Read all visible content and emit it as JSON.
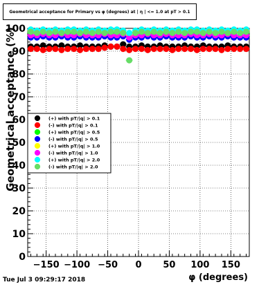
{
  "title": "Geometrical acceptance for Primary vs φ (degrees) at | η | <= 1.0 at pT > 0.1",
  "datestamp": "Tue Jul  3 09:29:17 2018",
  "chart_data": {
    "type": "scatter",
    "xlabel": "φ (degrees)",
    "ylabel": "Geometrical acceptance (%)",
    "xlim": [
      -180,
      180
    ],
    "ylim": [
      0,
      100
    ],
    "xticks": [
      -150,
      -100,
      -50,
      0,
      50,
      100,
      150
    ],
    "xtick_labels": [
      "−150",
      "−100",
      "−50",
      "0",
      "50",
      "100",
      "150"
    ],
    "yticks": [
      0,
      10,
      20,
      30,
      40,
      50,
      60,
      70,
      80,
      90,
      100
    ],
    "ytick_labels": [
      "0",
      "10",
      "20",
      "30",
      "40",
      "50",
      "60",
      "70",
      "80",
      "90",
      "100"
    ],
    "grid": true,
    "legend_position": "left",
    "x": [
      -175,
      -165,
      -155,
      -145,
      -135,
      -125,
      -115,
      -105,
      -95,
      -85,
      -75,
      -65,
      -55,
      -45,
      -35,
      -25,
      -15,
      -5,
      5,
      15,
      25,
      35,
      45,
      55,
      65,
      75,
      85,
      95,
      105,
      115,
      125,
      135,
      145,
      155,
      165,
      175
    ],
    "series": [
      {
        "name": "(+) with pT/|q| > 0.1",
        "color": "#000000",
        "marker": "circle",
        "values": [
          92,
          92,
          92.5,
          92,
          92,
          92.5,
          92,
          92,
          92.5,
          92,
          92,
          92,
          92.5,
          92,
          92,
          93,
          92,
          92,
          92.5,
          92,
          92,
          92.5,
          92,
          92,
          92,
          92.5,
          92,
          92,
          92.5,
          92,
          92,
          92,
          92.5,
          92,
          92,
          92
        ]
      },
      {
        "name": "(-) with pT/|q| > 0.1",
        "color": "#ff0000",
        "marker": "circle",
        "values": [
          91,
          91,
          90.5,
          91,
          91,
          90.5,
          91,
          91,
          90.5,
          91,
          91,
          91,
          91.5,
          92,
          92,
          91,
          90.5,
          91,
          91,
          90.5,
          91,
          91,
          91,
          90.5,
          91,
          91,
          91,
          90.5,
          91,
          91,
          91,
          90.5,
          91,
          91,
          91,
          91
        ]
      },
      {
        "name": "(+) with pT/|q| > 0.5",
        "color": "#00ff00",
        "marker": "circle",
        "values": [
          98,
          97,
          98,
          97,
          98,
          97,
          98,
          98,
          97,
          98,
          97,
          98,
          97,
          98,
          98,
          97,
          96,
          97,
          98,
          97,
          98,
          97,
          98,
          97,
          98,
          97,
          98,
          98,
          97,
          98,
          97,
          98,
          97,
          98,
          97,
          98
        ]
      },
      {
        "name": "(-) with pT/|q| > 0.5",
        "color": "#0000ff",
        "marker": "circle",
        "values": [
          96,
          96,
          96.5,
          96,
          96,
          96.5,
          96,
          96,
          96.5,
          96,
          96,
          96,
          96.5,
          96,
          96,
          96.5,
          95,
          96,
          96,
          96.5,
          96,
          96,
          96.5,
          96,
          96,
          96,
          96.5,
          96,
          96,
          96.5,
          96,
          96,
          96.5,
          96,
          96,
          96
        ]
      },
      {
        "name": "(+) with pT/|q| > 1.0",
        "color": "#ffff00",
        "marker": "circle",
        "values": [
          99,
          98,
          99,
          98,
          99,
          98,
          99,
          99,
          98,
          99,
          98,
          99,
          98,
          99,
          99,
          98,
          97,
          98,
          99,
          98,
          99,
          98,
          99,
          98,
          99,
          98,
          99,
          99,
          98,
          99,
          98,
          99,
          98,
          99,
          98,
          99
        ]
      },
      {
        "name": "(-) with pT/|q| > 1.0",
        "color": "#ff00ff",
        "marker": "circle",
        "values": [
          97,
          97,
          97.5,
          97,
          97,
          97.5,
          97,
          97,
          97.5,
          97,
          97,
          97,
          97.5,
          97,
          97,
          97.5,
          96,
          97,
          97,
          97.5,
          97,
          97,
          97.5,
          97,
          97,
          97,
          97.5,
          97,
          97,
          97.5,
          97,
          97,
          97.5,
          97,
          97,
          97
        ]
      },
      {
        "name": "(+) with pT/|q| > 2.0",
        "color": "#00ffff",
        "marker": "circle",
        "values": [
          99.5,
          99,
          99.5,
          99,
          99.5,
          99,
          99.5,
          99.5,
          99,
          99.5,
          99,
          99.5,
          99,
          99.5,
          99.5,
          99,
          98,
          99,
          99.5,
          99,
          99.5,
          99,
          99.5,
          99,
          99.5,
          99,
          99.5,
          99.5,
          99,
          99.5,
          99,
          99.5,
          99,
          99.5,
          99,
          99.5
        ]
      },
      {
        "name": "(-) with pT/|q| > 2.0",
        "color": "#66dd66",
        "marker": "circle",
        "values": [
          98.5,
          98,
          98.5,
          98,
          98.5,
          98,
          98.5,
          98.5,
          98,
          98.5,
          98,
          98.5,
          98,
          98.5,
          98.5,
          98,
          86,
          98,
          98.5,
          98,
          98.5,
          98,
          98.5,
          98,
          98.5,
          98,
          98.5,
          98.5,
          98,
          98.5,
          98,
          98.5,
          98,
          98.5,
          98,
          98.5
        ]
      }
    ]
  }
}
